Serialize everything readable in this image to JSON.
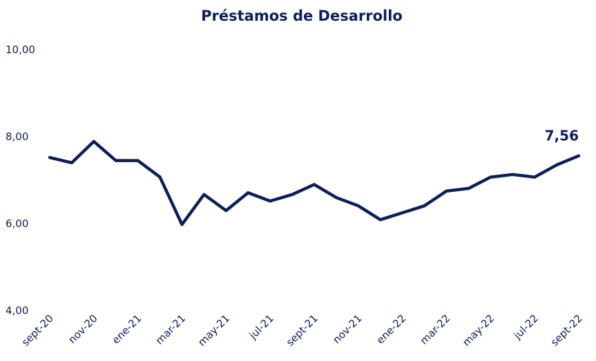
{
  "chart_data": {
    "type": "line",
    "title": "Préstamos de Desarrollo",
    "categories": [
      "sept-20",
      null,
      "nov-20",
      null,
      "ene-21",
      null,
      "mar-21",
      null,
      "may-21",
      null,
      "jul-21",
      null,
      "sept-21",
      null,
      "nov-21",
      null,
      "ene-22",
      null,
      "mar-22",
      null,
      "may-22",
      null,
      "jul-22",
      null,
      "sept-22"
    ],
    "values": [
      7.52,
      7.4,
      7.89,
      7.45,
      7.45,
      7.07,
      5.98,
      6.67,
      6.3,
      6.71,
      6.52,
      6.67,
      6.9,
      6.6,
      6.41,
      6.09,
      6.25,
      6.41,
      6.75,
      6.81,
      7.07,
      7.13,
      7.07,
      7.35,
      7.56
    ],
    "value_labels": [
      null,
      null,
      null,
      null,
      null,
      null,
      null,
      null,
      null,
      null,
      null,
      null,
      null,
      null,
      null,
      null,
      null,
      null,
      null,
      null,
      null,
      null,
      null,
      null,
      "7,56"
    ],
    "color": "#0d1f5a",
    "ylim": [
      4,
      10
    ],
    "yticks": [
      {
        "value": 4,
        "label": "4,00"
      },
      {
        "value": 6,
        "label": "6,00"
      },
      {
        "value": 8,
        "label": "8,00"
      },
      {
        "value": 10,
        "label": "10,00"
      }
    ],
    "grid": false
  }
}
